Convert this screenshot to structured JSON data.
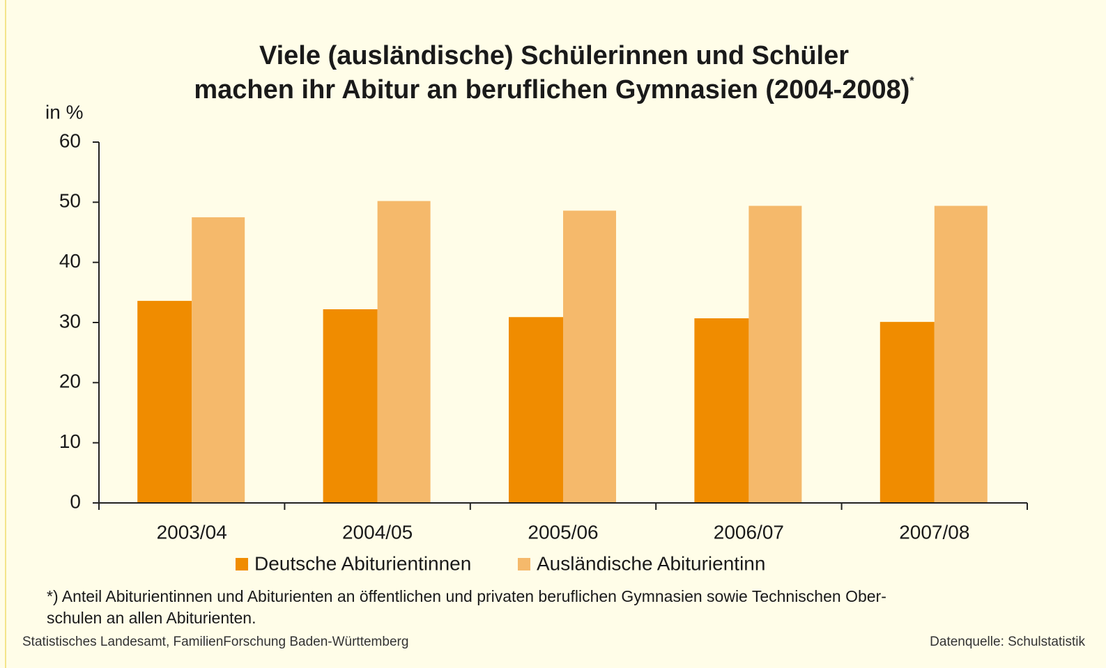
{
  "chart_data": {
    "type": "bar",
    "title": [
      "Viele (ausländische) Schülerinnen und Schüler",
      "machen ihr Abitur an beruflichen Gymnasien (2004-2008)"
    ],
    "title_mark": "*",
    "y_label": "in %",
    "categories": [
      "2003/04",
      "2004/05",
      "2005/06",
      "2006/07",
      "2007/08"
    ],
    "series": [
      {
        "name": "Deutsche Abiturientinnen",
        "color": "#f08c00",
        "values": [
          33.6,
          32.2,
          30.9,
          30.7,
          30.1
        ]
      },
      {
        "name": "Ausländische Abiturientinn",
        "color": "#f5b96b",
        "values": [
          47.5,
          50.2,
          48.6,
          49.4,
          49.4
        ]
      }
    ],
    "ylim": [
      0,
      60
    ],
    "yticks": [
      0,
      10,
      20,
      30,
      40,
      50,
      60
    ],
    "footnote": [
      "*) Anteil Abiturientinnen und Abiturienten an öffentlichen und privaten beruflichen Gymnasien sowie Technischen Ober-",
      "schulen an allen Abiturienten."
    ],
    "source_left": "Statistisches Landesamt, FamilienForschung Baden-Württemberg",
    "source_right": "Datenquelle: Schulstatistik"
  }
}
